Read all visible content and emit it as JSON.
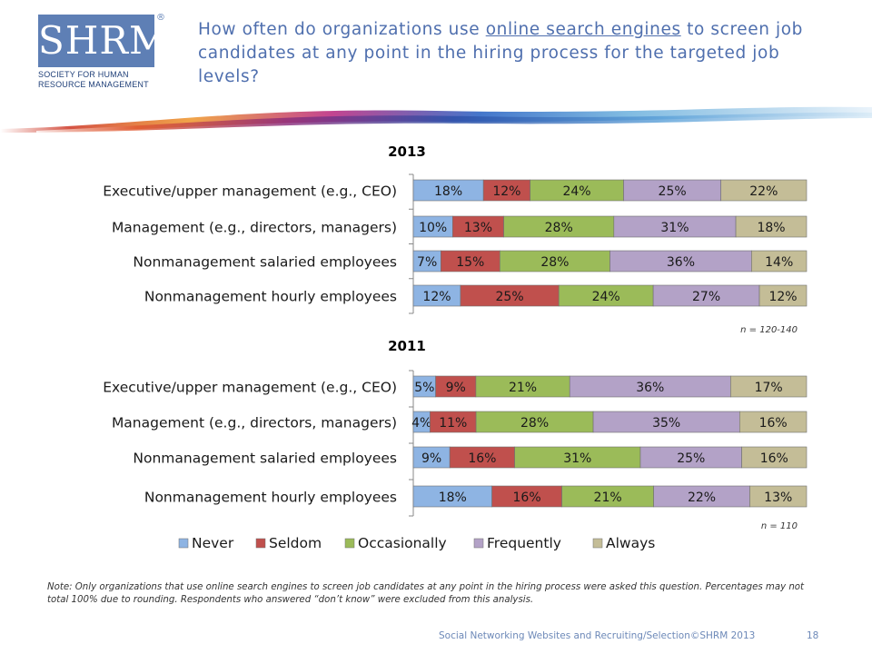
{
  "logo": {
    "letters": "SHRM",
    "registered": "®",
    "line1": "SOCIETY FOR HUMAN",
    "line2": "RESOURCE MANAGEMENT"
  },
  "title": {
    "before": "How often do organizations use ",
    "underlined": "online search engines",
    "after": " to screen job candidates at any point in the hiring process for the targeted job levels?"
  },
  "chart_data": [
    {
      "type": "bar",
      "orientation": "horizontal-stacked",
      "title": "2013",
      "categories": [
        "Executive/upper management (e.g., CEO)",
        "Management (e.g., directors, managers)",
        "Nonmanagement salaried employees",
        "Nonmanagement hourly employees"
      ],
      "series": [
        {
          "name": "Never",
          "values": [
            18,
            10,
            7,
            12
          ]
        },
        {
          "name": "Seldom",
          "values": [
            12,
            13,
            15,
            25
          ]
        },
        {
          "name": "Occasionally",
          "values": [
            24,
            28,
            28,
            24
          ]
        },
        {
          "name": "Frequently",
          "values": [
            25,
            31,
            36,
            27
          ]
        },
        {
          "name": "Always",
          "values": [
            22,
            18,
            14,
            12
          ]
        }
      ],
      "note": "n = 120-140"
    },
    {
      "type": "bar",
      "orientation": "horizontal-stacked",
      "title": "2011",
      "categories": [
        "Executive/upper management (e.g., CEO)",
        "Management (e.g., directors, managers)",
        "Nonmanagement salaried employees",
        "Nonmanagement hourly employees"
      ],
      "series": [
        {
          "name": "Never",
          "values": [
            5,
            4,
            9,
            18
          ]
        },
        {
          "name": "Seldom",
          "values": [
            9,
            11,
            16,
            16
          ]
        },
        {
          "name": "Occasionally",
          "values": [
            21,
            28,
            31,
            21
          ]
        },
        {
          "name": "Frequently",
          "values": [
            36,
            35,
            25,
            22
          ]
        },
        {
          "name": "Always",
          "values": [
            17,
            16,
            16,
            13
          ]
        }
      ],
      "note": "n = 110"
    }
  ],
  "legend": [
    "Never",
    "Seldom",
    "Occasionally",
    "Frequently",
    "Always"
  ],
  "colors": {
    "Never": "#8eb4e3",
    "Seldom": "#c0504d",
    "Occasionally": "#9bbb59",
    "Frequently": "#b3a2c7",
    "Always": "#c4bd97"
  },
  "value_suffix": "%",
  "note": "Note: Only organizations that use online search engines to screen job candidates at any point in the hiring process were asked this question. Percentages may not total 100% due to rounding. Respondents who answered “don’t know” were excluded from this analysis.",
  "footer": "Social Networking Websites and Recruiting/Selection©SHRM 2013",
  "page_number": "18"
}
